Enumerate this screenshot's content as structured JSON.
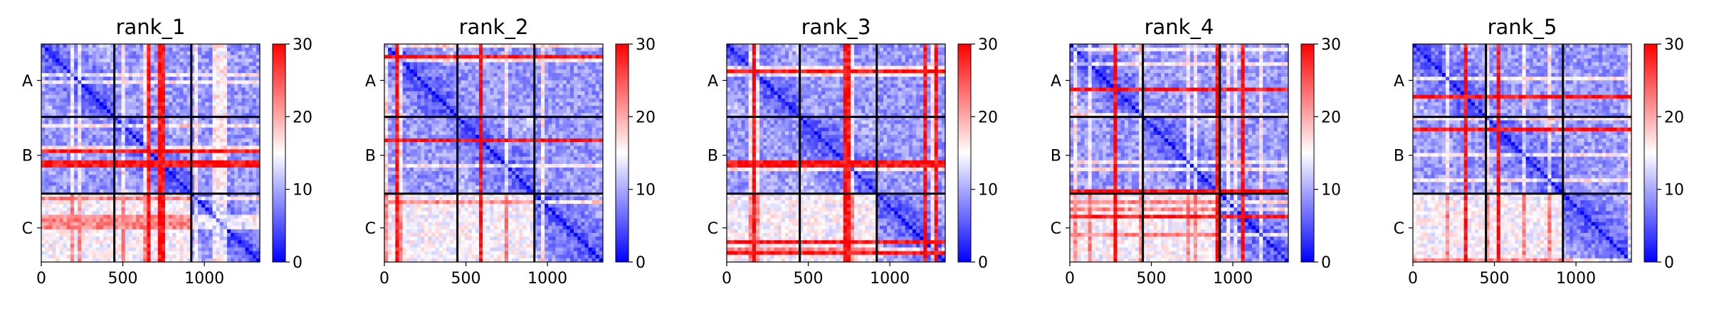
{
  "colors": {
    "cmap": [
      "#0000ff",
      "#ffffff",
      "#ff0000"
    ],
    "chain_boundary": "#000000"
  },
  "chart_data": [
    {
      "type": "heatmap",
      "title": "rank_1",
      "chains": [
        "A",
        "B",
        "C"
      ],
      "chain_boundaries": [
        448,
        920
      ],
      "xlim": [
        0,
        1340
      ],
      "xticks": [
        0,
        500,
        1000
      ],
      "colorbar": {
        "range": [
          0,
          30
        ],
        "ticks": [
          0,
          10,
          20,
          30
        ]
      },
      "cmap": "bwr",
      "grid": false
    },
    {
      "type": "heatmap",
      "title": "rank_2",
      "chains": [
        "A",
        "B",
        "C"
      ],
      "chain_boundaries": [
        448,
        920
      ],
      "xlim": [
        0,
        1340
      ],
      "xticks": [
        0,
        500,
        1000
      ],
      "colorbar": {
        "range": [
          0,
          30
        ],
        "ticks": [
          0,
          10,
          20,
          30
        ]
      },
      "cmap": "bwr",
      "grid": false
    },
    {
      "type": "heatmap",
      "title": "rank_3",
      "chains": [
        "A",
        "B",
        "C"
      ],
      "chain_boundaries": [
        448,
        920
      ],
      "xlim": [
        0,
        1340
      ],
      "xticks": [
        0,
        500,
        1000
      ],
      "colorbar": {
        "range": [
          0,
          30
        ],
        "ticks": [
          0,
          10,
          20,
          30
        ]
      },
      "cmap": "bwr",
      "grid": false
    },
    {
      "type": "heatmap",
      "title": "rank_4",
      "chains": [
        "A",
        "B",
        "C"
      ],
      "chain_boundaries": [
        448,
        920
      ],
      "xlim": [
        0,
        1340
      ],
      "xticks": [
        0,
        500,
        1000
      ],
      "colorbar": {
        "range": [
          0,
          30
        ],
        "ticks": [
          0,
          10,
          20,
          30
        ]
      },
      "cmap": "bwr",
      "grid": false
    },
    {
      "type": "heatmap",
      "title": "rank_5",
      "chains": [
        "A",
        "B",
        "C"
      ],
      "chain_boundaries": [
        448,
        920
      ],
      "xlim": [
        0,
        1340
      ],
      "xticks": [
        0,
        500,
        1000
      ],
      "colorbar": {
        "range": [
          0,
          30
        ],
        "ticks": [
          0,
          10,
          20,
          30
        ]
      },
      "cmap": "bwr",
      "grid": false
    }
  ]
}
